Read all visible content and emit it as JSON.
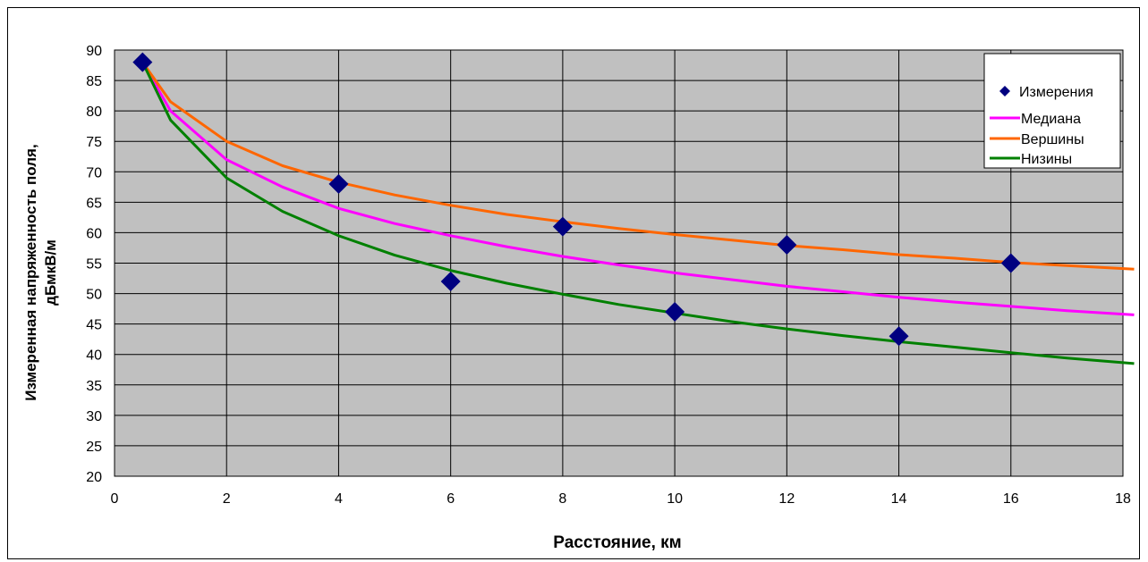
{
  "chart_data": {
    "type": "line",
    "xlabel": "Расстояние, км",
    "ylabel_line1": "Измеренная напряженность поля,",
    "ylabel_line2": "дБмкВ/м",
    "xlim": [
      0,
      18
    ],
    "ylim": [
      20,
      90
    ],
    "x_ticks": [
      0,
      2,
      4,
      6,
      8,
      10,
      12,
      14,
      16,
      18
    ],
    "y_ticks": [
      20,
      25,
      30,
      35,
      40,
      45,
      50,
      55,
      60,
      65,
      70,
      75,
      80,
      85,
      90
    ],
    "grid": true,
    "plot_background": "#c0c0c0",
    "legend_position": "top-right",
    "series": [
      {
        "name": "Измерения",
        "kind": "scatter",
        "marker": "diamond",
        "color": "#000080",
        "points": [
          [
            0.5,
            88
          ],
          [
            4,
            68
          ],
          [
            6,
            52
          ],
          [
            8,
            61
          ],
          [
            10,
            47
          ],
          [
            12,
            58
          ],
          [
            14,
            43
          ],
          [
            16,
            55
          ]
        ]
      },
      {
        "name": "Медиана",
        "kind": "line",
        "color": "#ff00ff",
        "points": [
          [
            0.5,
            88
          ],
          [
            1,
            80
          ],
          [
            2,
            72
          ],
          [
            3,
            67.5
          ],
          [
            4,
            64
          ],
          [
            5,
            61.5
          ],
          [
            6,
            59.5
          ],
          [
            7,
            57.7
          ],
          [
            8,
            56.1
          ],
          [
            9,
            54.7
          ],
          [
            10,
            53.4
          ],
          [
            11,
            52.3
          ],
          [
            12,
            51.2
          ],
          [
            13,
            50.3
          ],
          [
            14,
            49.4
          ],
          [
            15,
            48.6
          ],
          [
            16,
            47.9
          ],
          [
            17,
            47.2
          ],
          [
            18.2,
            46.5
          ]
        ]
      },
      {
        "name": "Вершины",
        "kind": "line",
        "color": "#ff6600",
        "points": [
          [
            0.5,
            88
          ],
          [
            1,
            81.5
          ],
          [
            2,
            75
          ],
          [
            3,
            71
          ],
          [
            4,
            68.3
          ],
          [
            5,
            66.2
          ],
          [
            6,
            64.5
          ],
          [
            7,
            63
          ],
          [
            8,
            61.8
          ],
          [
            9,
            60.7
          ],
          [
            10,
            59.7
          ],
          [
            11,
            58.8
          ],
          [
            12,
            57.9
          ],
          [
            13,
            57.2
          ],
          [
            14,
            56.4
          ],
          [
            15,
            55.8
          ],
          [
            16,
            55.1
          ],
          [
            17,
            54.6
          ],
          [
            18.2,
            54
          ]
        ]
      },
      {
        "name": "Низины",
        "kind": "line",
        "color": "#008000",
        "points": [
          [
            0.5,
            88
          ],
          [
            1,
            78.5
          ],
          [
            2,
            69
          ],
          [
            3,
            63.5
          ],
          [
            4,
            59.5
          ],
          [
            5,
            56.3
          ],
          [
            6,
            53.8
          ],
          [
            7,
            51.7
          ],
          [
            8,
            49.9
          ],
          [
            9,
            48.2
          ],
          [
            10,
            46.8
          ],
          [
            11,
            45.4
          ],
          [
            12,
            44.2
          ],
          [
            13,
            43.1
          ],
          [
            14,
            42.1
          ],
          [
            15,
            41.2
          ],
          [
            16,
            40.3
          ],
          [
            17,
            39.4
          ],
          [
            18.2,
            38.5
          ]
        ]
      }
    ]
  }
}
